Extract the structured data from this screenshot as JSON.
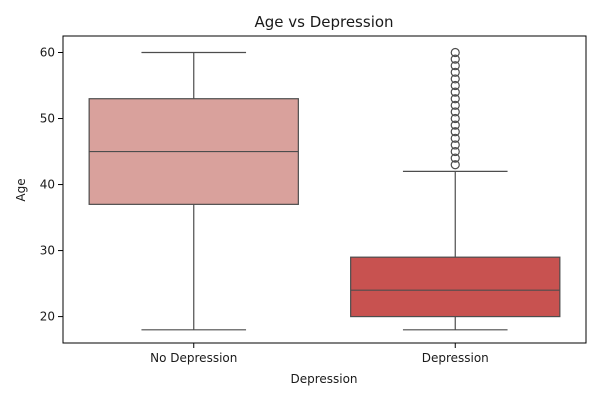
{
  "chart_data": {
    "type": "boxplot",
    "title": "Age vs Depression",
    "xlabel": "Depression",
    "ylabel": "Age",
    "ylim": [
      16,
      62.5
    ],
    "yticks": [
      20,
      30,
      40,
      50,
      60
    ],
    "grid": false,
    "categories": [
      "No Depression",
      "Depression"
    ],
    "boxes": [
      {
        "category": "No Depression",
        "whisker_low": 18,
        "q1": 37,
        "median": 45,
        "q3": 53,
        "whisker_high": 60,
        "outliers": [],
        "color": "#d9a19c"
      },
      {
        "category": "Depression",
        "whisker_low": 18,
        "q1": 20,
        "median": 24,
        "q3": 29,
        "whisker_high": 42,
        "outliers": [
          43,
          44,
          45,
          46,
          47,
          48,
          49,
          50,
          51,
          52,
          53,
          54,
          55,
          56,
          57,
          58,
          59,
          60
        ],
        "color": "#c85250"
      }
    ]
  }
}
